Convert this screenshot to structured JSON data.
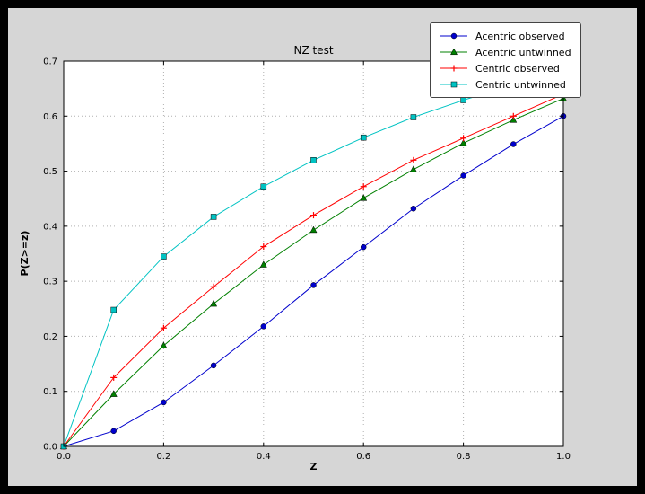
{
  "window": {
    "outer_bg": "#000000",
    "figure_bg": "#d6d6d6",
    "plot_bg": "#ffffff",
    "grid_color": "#b0b0b0",
    "frame_color": "#000000"
  },
  "chart_data": {
    "type": "line",
    "title": "NZ test",
    "xlabel": "Z",
    "ylabel": "P(Z>=z)",
    "xlim": [
      0.0,
      1.0
    ],
    "ylim": [
      0.0,
      0.7
    ],
    "x_ticks": [
      0.0,
      0.2,
      0.4,
      0.6,
      0.8,
      1.0
    ],
    "y_ticks": [
      0.0,
      0.1,
      0.2,
      0.3,
      0.4,
      0.5,
      0.6,
      0.7
    ],
    "grid": true,
    "legend_position": "upper right",
    "x": [
      0.0,
      0.1,
      0.2,
      0.3,
      0.4,
      0.5,
      0.6,
      0.7,
      0.8,
      0.9,
      1.0
    ],
    "series": [
      {
        "name": "Acentric observed",
        "color": "#0000cc",
        "marker": "circle",
        "values": [
          0.0,
          0.028,
          0.08,
          0.147,
          0.218,
          0.293,
          0.362,
          0.432,
          0.492,
          0.549,
          0.6
        ]
      },
      {
        "name": "Acentric untwinned",
        "color": "#008000",
        "marker": "triangle",
        "values": [
          0.0,
          0.095,
          0.183,
          0.259,
          0.33,
          0.393,
          0.451,
          0.503,
          0.551,
          0.593,
          0.632
        ]
      },
      {
        "name": "Centric observed",
        "color": "#ff0000",
        "marker": "plus",
        "values": [
          0.0,
          0.125,
          0.215,
          0.29,
          0.363,
          0.42,
          0.472,
          0.52,
          0.56,
          0.6,
          0.64
        ]
      },
      {
        "name": "Centric untwinned",
        "color": "#00c3c3",
        "marker": "square",
        "values": [
          0.0,
          0.248,
          0.345,
          0.417,
          0.472,
          0.52,
          0.561,
          0.598,
          0.629,
          0.657,
          0.683
        ]
      }
    ]
  }
}
